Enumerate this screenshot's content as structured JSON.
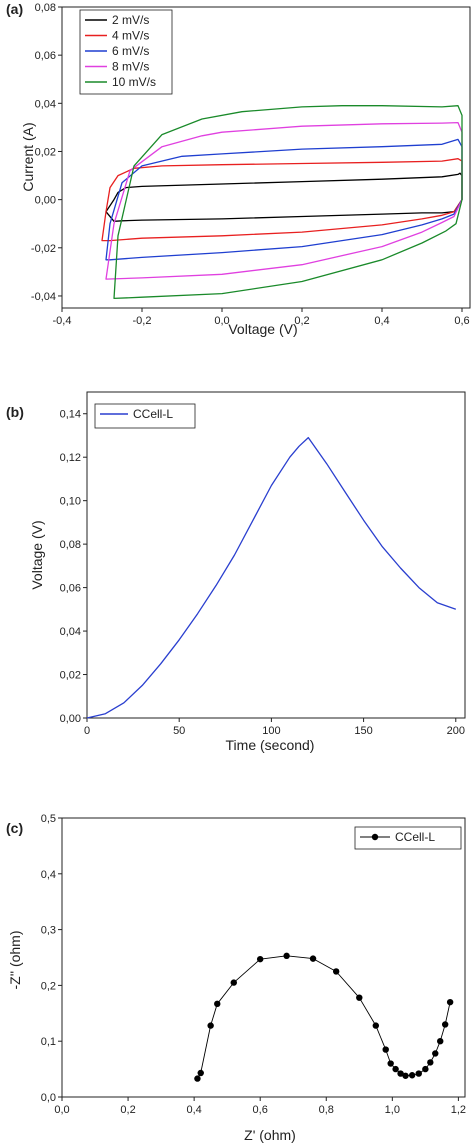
{
  "panels": [
    {
      "label": "(a)",
      "chart_data": {
        "type": "line",
        "xlabel": "Voltage (V)",
        "ylabel": "Current (A)",
        "xlim": [
          -0.4,
          0.62
        ],
        "ylim": [
          -0.045,
          0.08
        ],
        "xticks": [
          -0.4,
          -0.2,
          0.0,
          0.2,
          0.4,
          0.6
        ],
        "xtick_labels": [
          "-0,4",
          "-0,2",
          "0,0",
          "0,2",
          "0,4",
          "0,6"
        ],
        "yticks": [
          -0.04,
          -0.02,
          0.0,
          0.02,
          0.04,
          0.06,
          0.08
        ],
        "ytick_labels": [
          "-0,04",
          "-0,02",
          "0,00",
          "0,02",
          "0,04",
          "0,06",
          "0,08"
        ],
        "legend_position": "top-left",
        "series": [
          {
            "name": "2 mV/s",
            "color": "#000000",
            "x": [
              -0.29,
              -0.27,
              -0.26,
              -0.24,
              -0.2,
              0.0,
              0.2,
              0.4,
              0.55,
              0.59,
              0.595,
              0.6,
              0.6,
              0.58,
              0.55,
              0.5,
              0.4,
              0.2,
              0.0,
              -0.2,
              -0.25,
              -0.27,
              -0.29
            ],
            "y": [
              -0.005,
              0.0,
              0.003,
              0.005,
              0.0055,
              0.0065,
              0.0075,
              0.0085,
              0.0095,
              0.0105,
              0.011,
              0.01,
              0.0,
              -0.005,
              -0.0055,
              -0.0055,
              -0.006,
              -0.007,
              -0.008,
              -0.0085,
              -0.0088,
              -0.009,
              -0.005
            ]
          },
          {
            "name": "4 mV/s",
            "color": "#e82020",
            "x": [
              -0.3,
              -0.29,
              -0.28,
              -0.26,
              -0.22,
              -0.15,
              0.0,
              0.2,
              0.4,
              0.55,
              0.59,
              0.6,
              0.6,
              0.58,
              0.55,
              0.5,
              0.4,
              0.2,
              0.0,
              -0.2,
              -0.28,
              -0.3
            ],
            "y": [
              -0.017,
              -0.005,
              0.005,
              0.01,
              0.013,
              0.014,
              0.0145,
              0.015,
              0.0155,
              0.016,
              0.017,
              0.016,
              0.0,
              -0.005,
              -0.0065,
              -0.008,
              -0.0105,
              -0.0135,
              -0.015,
              -0.016,
              -0.017,
              -0.017
            ]
          },
          {
            "name": "6 mV/s",
            "color": "#1f3fd0",
            "x": [
              -0.29,
              -0.28,
              -0.25,
              -0.2,
              -0.1,
              0.0,
              0.2,
              0.4,
              0.55,
              0.59,
              0.6,
              0.6,
              0.58,
              0.55,
              0.5,
              0.4,
              0.2,
              0.0,
              -0.2,
              -0.28,
              -0.29
            ],
            "y": [
              -0.025,
              -0.01,
              0.007,
              0.014,
              0.018,
              0.019,
              0.021,
              0.022,
              0.023,
              0.025,
              0.022,
              0.0,
              -0.006,
              -0.008,
              -0.0105,
              -0.0145,
              -0.0195,
              -0.022,
              -0.024,
              -0.025,
              -0.025
            ]
          },
          {
            "name": "8 mV/s",
            "color": "#e040e0",
            "x": [
              -0.29,
              -0.27,
              -0.23,
              -0.15,
              -0.05,
              0.0,
              0.2,
              0.4,
              0.55,
              0.59,
              0.6,
              0.6,
              0.58,
              0.55,
              0.5,
              0.4,
              0.2,
              0.0,
              -0.2,
              -0.29
            ],
            "y": [
              -0.033,
              -0.01,
              0.012,
              0.022,
              0.0265,
              0.028,
              0.0305,
              0.0315,
              0.0318,
              0.032,
              0.028,
              0.0,
              -0.007,
              -0.0095,
              -0.0135,
              -0.0195,
              -0.027,
              -0.031,
              -0.0325,
              -0.033
            ]
          },
          {
            "name": "10 mV/s",
            "color": "#1a8a2a",
            "x": [
              -0.27,
              -0.26,
              -0.22,
              -0.15,
              -0.05,
              0.05,
              0.2,
              0.3,
              0.4,
              0.55,
              0.59,
              0.6,
              0.6,
              0.585,
              0.56,
              0.5,
              0.4,
              0.2,
              0.0,
              -0.2,
              -0.27
            ],
            "y": [
              -0.041,
              -0.015,
              0.014,
              0.027,
              0.0335,
              0.0365,
              0.0385,
              0.039,
              0.039,
              0.0385,
              0.039,
              0.035,
              0.0,
              -0.01,
              -0.013,
              -0.018,
              -0.025,
              -0.034,
              -0.039,
              -0.0405,
              -0.041
            ]
          }
        ]
      }
    },
    {
      "label": "(b)",
      "chart_data": {
        "type": "line",
        "xlabel": "Time (second)",
        "ylabel": "Voltage (V)",
        "xlim": [
          0,
          205
        ],
        "ylim": [
          0,
          0.15
        ],
        "xticks": [
          0,
          50,
          100,
          150,
          200
        ],
        "xtick_labels": [
          "0",
          "50",
          "100",
          "150",
          "200"
        ],
        "yticks": [
          0.0,
          0.02,
          0.04,
          0.06,
          0.08,
          0.1,
          0.12,
          0.14
        ],
        "ytick_labels": [
          "0,00",
          "0,02",
          "0,04",
          "0,06",
          "0,08",
          "0,10",
          "0,12",
          "0,14"
        ],
        "legend_position": "top-left",
        "series": [
          {
            "name": "CCell-L",
            "color": "#2a3fcf",
            "x": [
              0,
              10,
              20,
              30,
              40,
              50,
              60,
              70,
              80,
              90,
              100,
              110,
              115,
              120,
              130,
              140,
              150,
              160,
              170,
              180,
              190,
              200
            ],
            "y": [
              0.0,
              0.002,
              0.007,
              0.015,
              0.025,
              0.036,
              0.048,
              0.061,
              0.075,
              0.091,
              0.107,
              0.12,
              0.125,
              0.129,
              0.117,
              0.104,
              0.091,
              0.079,
              0.069,
              0.06,
              0.053,
              0.05
            ]
          }
        ]
      }
    },
    {
      "label": "(c)",
      "chart_data": {
        "type": "line",
        "xlabel": "Z' (ohm)",
        "ylabel": "-Z'' (ohm)",
        "xlim": [
          0,
          1.22
        ],
        "ylim": [
          0,
          0.5
        ],
        "xticks": [
          0.0,
          0.2,
          0.4,
          0.6,
          0.8,
          1.0,
          1.2
        ],
        "xtick_labels": [
          "0,0",
          "0,2",
          "0,4",
          "0,6",
          "0,8",
          "1,0",
          "1,2"
        ],
        "yticks": [
          0.0,
          0.1,
          0.2,
          0.3,
          0.4,
          0.5
        ],
        "ytick_labels": [
          "0,0",
          "0,1",
          "0,2",
          "0,3",
          "0,4",
          "0,5"
        ],
        "legend_position": "top-right",
        "series": [
          {
            "name": "CCell-L",
            "color": "#000000",
            "x": [
              0.41,
              0.42,
              0.45,
              0.47,
              0.52,
              0.6,
              0.68,
              0.76,
              0.83,
              0.9,
              0.95,
              0.98,
              0.995,
              1.01,
              1.025,
              1.04,
              1.06,
              1.08,
              1.1,
              1.115,
              1.13,
              1.145,
              1.16,
              1.175
            ],
            "y": [
              0.033,
              0.043,
              0.128,
              0.167,
              0.205,
              0.247,
              0.253,
              0.248,
              0.225,
              0.178,
              0.128,
              0.085,
              0.06,
              0.05,
              0.042,
              0.038,
              0.039,
              0.042,
              0.05,
              0.062,
              0.078,
              0.1,
              0.13,
              0.17
            ]
          }
        ]
      }
    }
  ]
}
